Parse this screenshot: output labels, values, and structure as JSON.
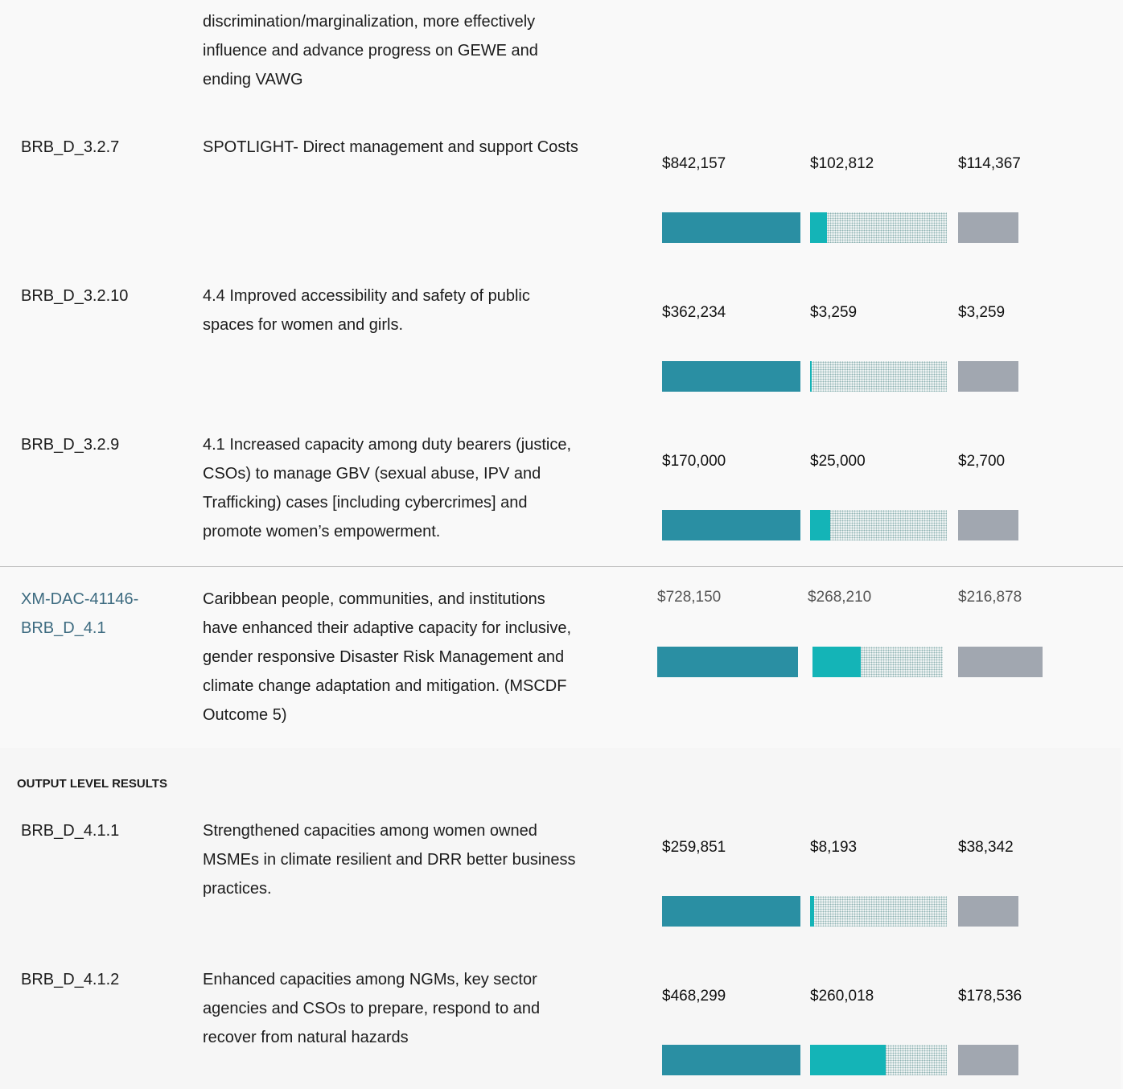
{
  "rows": [
    {
      "description": [
        "discrimination/marginalization, more effectively",
        "influence and advance progress on GEWE and",
        "ending VAWG"
      ]
    },
    {
      "id": [
        "BRB_D_3.2.7"
      ],
      "description": [
        "SPOTLIGHT- Direct management and support Costs"
      ],
      "values": [
        842157,
        102812,
        114367
      ],
      "value_labels": [
        "$842,157",
        "$102,812",
        "$114,367"
      ]
    },
    {
      "id": [
        "BRB_D_3.2.10"
      ],
      "description": [
        "4.4 Improved accessibility and safety of public",
        "spaces for women and girls."
      ],
      "values": [
        362234,
        3259,
        3259
      ],
      "value_labels": [
        "$362,234",
        "$3,259",
        "$3,259"
      ]
    },
    {
      "id": [
        "BRB_D_3.2.9"
      ],
      "description": [
        "4.1 Increased capacity among duty bearers (justice,",
        "CSOs) to manage GBV (sexual abuse, IPV and",
        "Trafficking) cases [including cybercrimes] and",
        "promote women’s empowerment."
      ],
      "values": [
        170000,
        25000,
        2700
      ],
      "value_labels": [
        "$170,000",
        "$25,000",
        "$2,700"
      ]
    },
    {
      "id": [
        "XM-DAC-41146-",
        "BRB_D_4.1"
      ],
      "description": [
        "Caribbean people, communities, and institutions",
        "have enhanced their adaptive capacity for inclusive,",
        "gender responsive Disaster Risk Management and",
        "climate change adaptation and mitigation. (MSCDF",
        "Outcome 5)"
      ],
      "values": [
        728150,
        268210,
        216878
      ],
      "value_labels": [
        "$728,150",
        "$268,210",
        "$216,878"
      ]
    },
    {
      "id": [
        "BRB_D_4.1.1"
      ],
      "description": [
        "Strengthened capacities among women owned",
        "MSMEs in climate resilient and DRR better business",
        "practices."
      ],
      "values": [
        259851,
        8193,
        38342
      ],
      "value_labels": [
        "$259,851",
        "$8,193",
        "$38,342"
      ]
    },
    {
      "id": [
        "BRB_D_4.1.2"
      ],
      "description": [
        "Enhanced capacities among NGMs, key sector",
        "agencies and CSOs to prepare, respond to and",
        "recover from natural hazards"
      ],
      "values": [
        468299,
        260018,
        178536
      ],
      "value_labels": [
        "$468,299",
        "$260,018",
        "$178,536"
      ]
    }
  ],
  "section_title": "OUTPUT LEVEL RESULTS"
}
